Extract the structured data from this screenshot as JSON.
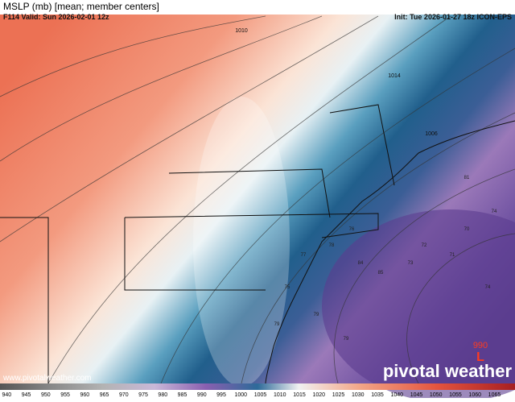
{
  "header": {
    "title": "MSLP (mb) [mean; member centers]",
    "valid": "F114 Valid: Sun 2026-02-01 12z",
    "init": "Init: Tue 2026-01-27 18z ICON-EPS"
  },
  "contour_labels": [
    "1014",
    "1006",
    "1010"
  ],
  "member_centers": [
    "81",
    "74",
    "70",
    "72",
    "73",
    "71",
    "74",
    "79",
    "75",
    "78",
    "76",
    "79",
    "79",
    "85",
    "84",
    "77"
  ],
  "low": {
    "value": "990",
    "symbol": "L"
  },
  "website": "www.pivotalweather.com",
  "brand": "pivotal weather",
  "colorbar": {
    "ticks": [
      940,
      945,
      950,
      955,
      960,
      965,
      970,
      975,
      980,
      985,
      990,
      995,
      1000,
      1005,
      1010,
      1015,
      1020,
      1025,
      1030,
      1035,
      1040,
      1045,
      1050,
      1055,
      1060,
      1065
    ]
  }
}
